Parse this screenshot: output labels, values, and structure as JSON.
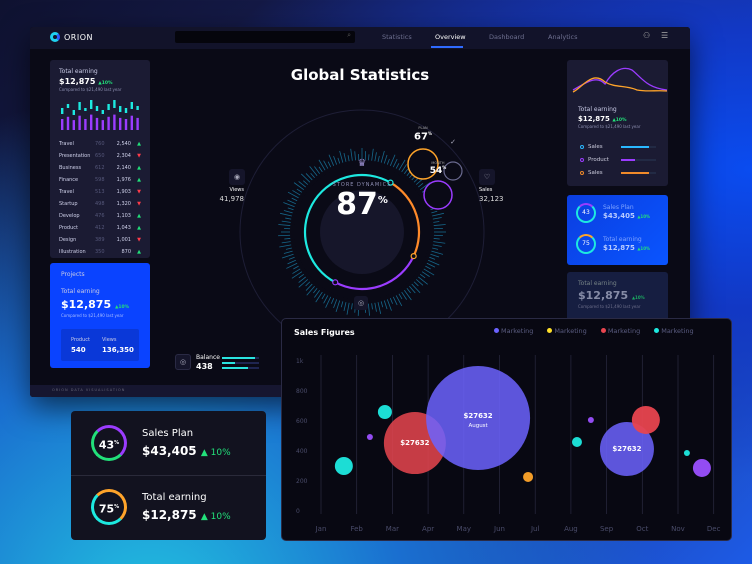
{
  "app": {
    "logo": "ORION",
    "footer": "ORION DATA VISUALISATION"
  },
  "nav": {
    "tabs": [
      "Statistics",
      "Overview",
      "Dashboard",
      "Analytics"
    ],
    "active": "Overview",
    "icons": [
      "user-icon",
      "settings-sliders-icon"
    ]
  },
  "title": "Global Statistics",
  "left_panel": {
    "label": "Total earning",
    "value": "$12,875",
    "change": "10%",
    "compare": "Compared to $21,490 last year",
    "rows": [
      [
        "Travel",
        "760",
        "2,540",
        "up"
      ],
      [
        "Presentation",
        "650",
        "2,304",
        "down"
      ],
      [
        "Business",
        "612",
        "2,140",
        "up"
      ],
      [
        "Finance",
        "598",
        "1,976",
        "up"
      ],
      [
        "Travel",
        "513",
        "1,903",
        "down"
      ],
      [
        "Startup",
        "498",
        "1,320",
        "down"
      ],
      [
        "Develop",
        "476",
        "1,103",
        "up"
      ],
      [
        "Product",
        "412",
        "1,043",
        "up"
      ],
      [
        "Design",
        "389",
        "1,001",
        "down"
      ],
      [
        "Illustration",
        "350",
        "870",
        "up"
      ]
    ]
  },
  "projects": {
    "title": "Projects",
    "label": "Total earning",
    "value": "$12,875",
    "change": "10%",
    "compare": "Compared to $21,490 last year",
    "product_label": "Product",
    "product_value": "540",
    "views_label": "Views",
    "views_value": "136,350"
  },
  "gauge": {
    "label": "STORE DYNAMICS",
    "value": "87",
    "unit": "%",
    "plan_label": "PLAN",
    "plan_value": "67",
    "month_label": "MONTH",
    "month_value": "54",
    "views_label": "Views",
    "views_value": "41,978",
    "sales_label": "Sales",
    "sales_value": "32,123"
  },
  "balance": {
    "label": "Balance",
    "value": "438",
    "bars": [
      0.9,
      0.35,
      0.7
    ]
  },
  "right_panel": {
    "label": "Total earning",
    "value": "$12,875",
    "change": "10%",
    "compare": "Compared to $21,490 last year",
    "legend": [
      {
        "name": "Sales",
        "color": "#2ab8ff",
        "level": 0.8
      },
      {
        "name": "Product",
        "color": "#9b3cff",
        "level": 0.4
      },
      {
        "name": "Sales",
        "color": "#f08a2a",
        "level": 0.8
      }
    ]
  },
  "right_blue": {
    "plan_label": "Sales Plan",
    "plan_value": "$43,405",
    "plan_pct": "43",
    "plan_change": "10%",
    "earn_label": "Total earning",
    "earn_value": "$12,875",
    "earn_pct": "75",
    "earn_change": "10%"
  },
  "right_faded": {
    "label": "Total earning",
    "value": "$12,875",
    "change": "10%",
    "compare": "Compared to $21,490 last year"
  },
  "bottom_cards": {
    "plan_label": "Sales Plan",
    "plan_value": "$43,405",
    "plan_pct": "43",
    "plan_unit": "%",
    "plan_change": "10%",
    "earn_label": "Total earning",
    "earn_value": "$12,875",
    "earn_pct": "75",
    "earn_unit": "%",
    "earn_change": "10%"
  },
  "colors": {
    "accent": "#2f6bff",
    "cyan": "#1de9e0",
    "purple": "#9b3cff",
    "orange": "#ffa42a",
    "red": "#e8454f",
    "violet": "#6c63ff",
    "green": "#22e07a"
  },
  "chart_data": {
    "type": "scatter",
    "title": "Sales Figures",
    "legend": [
      {
        "name": "Marketing",
        "color": "#6c63ff"
      },
      {
        "name": "Marketing",
        "color": "#ffe02a"
      },
      {
        "name": "Marketing",
        "color": "#e8454f"
      },
      {
        "name": "Marketing",
        "color": "#1de9e0"
      }
    ],
    "categories": [
      "Jan",
      "Feb",
      "Mar",
      "Apr",
      "May",
      "Jun",
      "Jul",
      "Aug",
      "Sep",
      "Oct",
      "Nov",
      "Dec"
    ],
    "yticks": [
      "0",
      "200",
      "400",
      "600",
      "800",
      "1k"
    ],
    "ylim": [
      0,
      1000
    ],
    "grid": "vertical",
    "points": [
      {
        "x": 1.64,
        "y": 300,
        "size": 9,
        "color": "#1de9e0"
      },
      {
        "x": 2.37,
        "y": 493,
        "size": 3,
        "color": "#9b50ff"
      },
      {
        "x": 2.79,
        "y": 660,
        "size": 7,
        "color": "#1de9e0"
      },
      {
        "x": 3.63,
        "y": 453,
        "size": 31,
        "color": "#e8454f",
        "label": "$27632"
      },
      {
        "x": 5.4,
        "y": 620,
        "size": 52,
        "color": "#6c63ff",
        "label": "$27632",
        "sublabel": "August"
      },
      {
        "x": 6.8,
        "y": 227,
        "size": 5,
        "color": "#ffa42a"
      },
      {
        "x": 8.17,
        "y": 460,
        "size": 5,
        "color": "#1de9e0"
      },
      {
        "x": 8.56,
        "y": 607,
        "size": 3,
        "color": "#9b50ff"
      },
      {
        "x": 9.57,
        "y": 413,
        "size": 27,
        "color": "#6c63ff",
        "label": "$27632"
      },
      {
        "x": 10.1,
        "y": 607,
        "size": 14,
        "color": "#e8454f"
      },
      {
        "x": 11.25,
        "y": 387,
        "size": 3,
        "color": "#1de9e0"
      },
      {
        "x": 11.67,
        "y": 287,
        "size": 9,
        "color": "#9b50ff"
      }
    ]
  }
}
